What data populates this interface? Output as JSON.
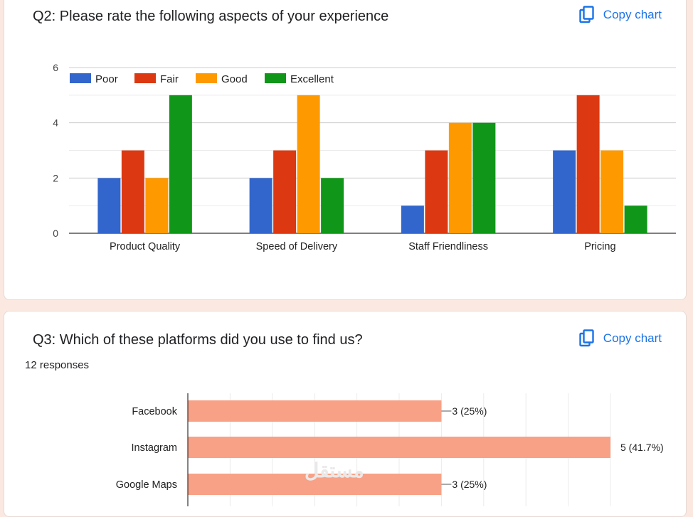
{
  "q2": {
    "title": "Q2: Please rate the following aspects of your experience",
    "copy_label": "Copy chart"
  },
  "q3": {
    "title": "Q3: Which of these platforms did you use to find us?",
    "responses": "12 responses",
    "copy_label": "Copy chart"
  },
  "watermark": "مستقل",
  "colors": {
    "link": "#1a73e8",
    "poor": "#3366cc",
    "fair": "#dc3912",
    "good": "#ff9900",
    "excellent": "#109618",
    "bar_q3": "#f8a186"
  },
  "chart_data": [
    {
      "type": "bar",
      "categories": [
        "Product Quality",
        "Speed of Delivery",
        "Staff Friendliness",
        "Pricing"
      ],
      "series": [
        {
          "name": "Poor",
          "values": [
            2,
            2,
            1,
            3
          ]
        },
        {
          "name": "Fair",
          "values": [
            3,
            3,
            3,
            5
          ]
        },
        {
          "name": "Good",
          "values": [
            2,
            5,
            4,
            3
          ]
        },
        {
          "name": "Excellent",
          "values": [
            5,
            2,
            4,
            1
          ]
        }
      ],
      "ylim": [
        0,
        6
      ],
      "yticks": [
        "0",
        "2",
        "4",
        "6"
      ],
      "legend": "top-left",
      "grid": true
    },
    {
      "type": "bar",
      "orientation": "horizontal",
      "categories": [
        "Facebook",
        "Instagram",
        "Google Maps"
      ],
      "values": [
        3,
        5,
        3
      ],
      "data_labels": [
        "3 (25%)",
        "5 (41.7%)",
        "3 (25%)"
      ],
      "xlim": [
        0,
        5
      ],
      "grid": true
    }
  ]
}
